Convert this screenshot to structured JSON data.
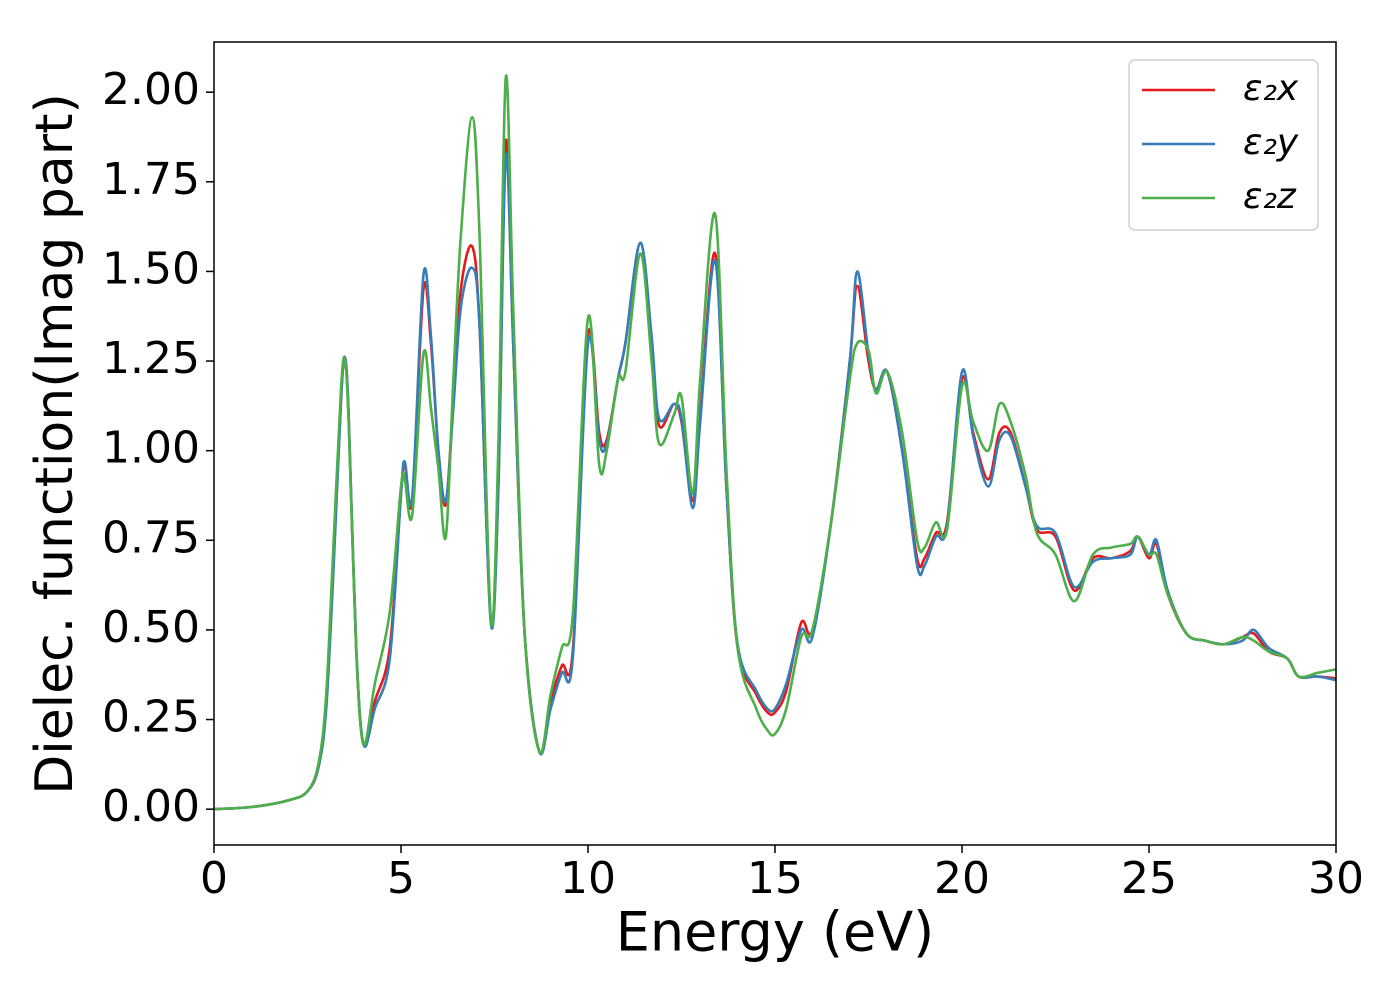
{
  "chart_data": {
    "type": "line",
    "xlabel": "Energy (eV)",
    "ylabel": "Dielec. function(Imag part)",
    "x": [
      0,
      1,
      2,
      2.5,
      2.8,
      3.0,
      3.2,
      3.4,
      3.5,
      3.6,
      3.8,
      4.0,
      4.3,
      4.7,
      5.0,
      5.1,
      5.3,
      5.6,
      5.8,
      6.0,
      6.2,
      6.4,
      6.6,
      6.9,
      7.1,
      7.4,
      7.6,
      7.8,
      8.0,
      8.3,
      8.7,
      9.0,
      9.3,
      9.6,
      10.0,
      10.3,
      10.5,
      10.8,
      11.0,
      11.4,
      11.7,
      11.9,
      12.3,
      12.5,
      12.8,
      13.0,
      13.4,
      13.7,
      14.0,
      14.5,
      14.8,
      15.0,
      15.3,
      15.7,
      16.0,
      16.5,
      17.0,
      17.2,
      17.5,
      17.7,
      18.0,
      18.4,
      18.8,
      19.0,
      19.3,
      19.6,
      20.0,
      20.3,
      20.7,
      21.0,
      21.3,
      21.7,
      22.0,
      22.5,
      23.0,
      23.5,
      24.0,
      24.5,
      24.7,
      25.0,
      25.2,
      25.5,
      26.0,
      26.5,
      27.0,
      27.5,
      27.8,
      28.2,
      28.7,
      29.0,
      29.5,
      30.0
    ],
    "series": [
      {
        "name": "ε₂x",
        "color": "#e41a1c",
        "values": [
          0,
          0.006,
          0.025,
          0.05,
          0.12,
          0.3,
          0.7,
          1.15,
          1.26,
          1.1,
          0.45,
          0.18,
          0.3,
          0.45,
          0.88,
          0.96,
          0.86,
          1.45,
          1.3,
          1.0,
          0.85,
          1.15,
          1.45,
          1.57,
          1.35,
          0.53,
          0.9,
          1.86,
          1.3,
          0.5,
          0.16,
          0.3,
          0.4,
          0.45,
          1.32,
          1.05,
          1.03,
          1.2,
          1.3,
          1.58,
          1.3,
          1.07,
          1.13,
          1.08,
          0.86,
          1.1,
          1.55,
          0.9,
          0.45,
          0.32,
          0.27,
          0.27,
          0.33,
          0.52,
          0.5,
          0.8,
          1.25,
          1.46,
          1.25,
          1.17,
          1.22,
          1.0,
          0.7,
          0.7,
          0.77,
          0.8,
          1.2,
          1.05,
          0.92,
          1.05,
          1.05,
          0.9,
          0.78,
          0.76,
          0.61,
          0.7,
          0.7,
          0.72,
          0.76,
          0.7,
          0.74,
          0.6,
          0.49,
          0.47,
          0.46,
          0.48,
          0.49,
          0.44,
          0.42,
          0.37,
          0.37,
          0.365
        ]
      },
      {
        "name": "ε₂y",
        "color": "#377eb8",
        "values": [
          0,
          0.006,
          0.025,
          0.05,
          0.12,
          0.28,
          0.68,
          1.15,
          1.26,
          1.1,
          0.46,
          0.18,
          0.28,
          0.42,
          0.88,
          0.97,
          0.87,
          1.49,
          1.32,
          1.0,
          0.86,
          1.12,
          1.4,
          1.51,
          1.35,
          0.52,
          0.88,
          1.82,
          1.3,
          0.5,
          0.16,
          0.28,
          0.38,
          0.43,
          1.3,
          1.03,
          1.02,
          1.2,
          1.3,
          1.58,
          1.32,
          1.09,
          1.13,
          1.09,
          0.84,
          1.08,
          1.53,
          0.9,
          0.46,
          0.33,
          0.28,
          0.28,
          0.35,
          0.5,
          0.48,
          0.8,
          1.25,
          1.5,
          1.27,
          1.17,
          1.22,
          1.0,
          0.68,
          0.68,
          0.76,
          0.79,
          1.22,
          1.04,
          0.9,
          1.03,
          1.04,
          0.9,
          0.79,
          0.77,
          0.62,
          0.69,
          0.7,
          0.71,
          0.76,
          0.71,
          0.75,
          0.61,
          0.49,
          0.47,
          0.46,
          0.47,
          0.5,
          0.45,
          0.42,
          0.37,
          0.37,
          0.36
        ]
      },
      {
        "name": "ε₂z",
        "color": "#4daf4a",
        "values": [
          0,
          0.006,
          0.025,
          0.05,
          0.13,
          0.32,
          0.75,
          1.18,
          1.25,
          1.08,
          0.45,
          0.18,
          0.35,
          0.55,
          0.9,
          0.92,
          0.82,
          1.27,
          1.12,
          0.95,
          0.76,
          1.2,
          1.6,
          1.93,
          1.6,
          0.53,
          1.0,
          2.04,
          1.4,
          0.5,
          0.16,
          0.32,
          0.45,
          0.55,
          1.37,
          0.96,
          1.0,
          1.2,
          1.22,
          1.55,
          1.25,
          1.02,
          1.1,
          1.15,
          0.88,
          1.2,
          1.66,
          0.95,
          0.45,
          0.28,
          0.22,
          0.21,
          0.28,
          0.48,
          0.5,
          0.8,
          1.2,
          1.3,
          1.28,
          1.16,
          1.22,
          1.05,
          0.75,
          0.73,
          0.8,
          0.78,
          1.18,
          1.08,
          1.0,
          1.13,
          1.08,
          0.93,
          0.77,
          0.71,
          0.58,
          0.71,
          0.73,
          0.74,
          0.76,
          0.71,
          0.71,
          0.6,
          0.49,
          0.47,
          0.46,
          0.48,
          0.47,
          0.44,
          0.42,
          0.37,
          0.38,
          0.39
        ]
      }
    ],
    "xlim": [
      0,
      30
    ],
    "xticks": [
      0,
      5,
      10,
      15,
      20,
      25,
      30
    ],
    "ylim": [
      -0.1,
      2.14
    ],
    "yticks": [
      {
        "value": 0,
        "label": "0.00"
      },
      {
        "value": 0.25,
        "label": "0.25"
      },
      {
        "value": 0.5,
        "label": "0.50"
      },
      {
        "value": 0.75,
        "label": "0.75"
      },
      {
        "value": 1.0,
        "label": "1.00"
      },
      {
        "value": 1.25,
        "label": "1.25"
      },
      {
        "value": 1.5,
        "label": "1.50"
      },
      {
        "value": 1.75,
        "label": "1.75"
      },
      {
        "value": 2.0,
        "label": "2.00"
      }
    ],
    "grid": false,
    "legend": "upper right"
  }
}
